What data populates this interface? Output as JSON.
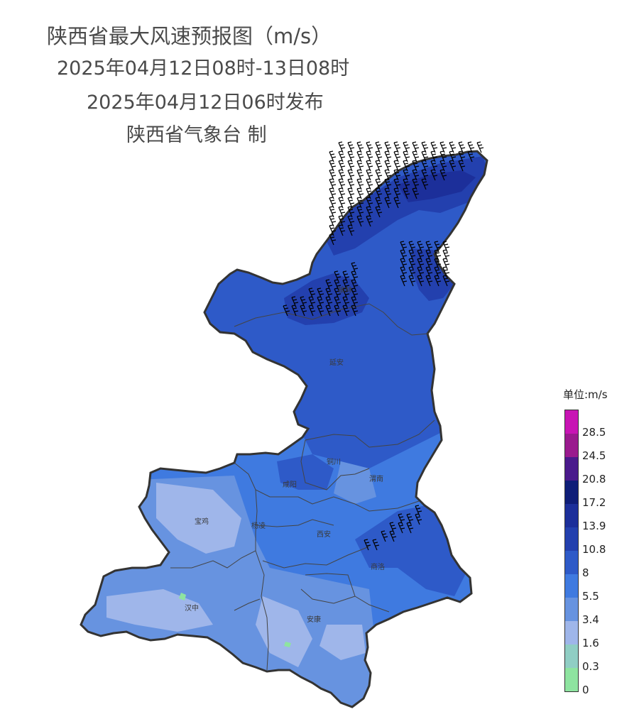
{
  "header": {
    "title": "陕西省最大风速预报图（m/s）",
    "period": "2025年04月12日08时-13日08时",
    "issued": "2025年04月12日06时发布",
    "issuer": "陕西省气象台 制"
  },
  "cities": [
    {
      "name": "榆林"
    },
    {
      "name": "延安"
    },
    {
      "name": "铜川"
    },
    {
      "name": "渭南"
    },
    {
      "name": "咸阳"
    },
    {
      "name": "宝鸡"
    },
    {
      "name": "杨凌"
    },
    {
      "name": "西安"
    },
    {
      "name": "商洛"
    },
    {
      "name": "汉中"
    },
    {
      "name": "安康"
    }
  ],
  "legend": {
    "title": "单位:m/s",
    "levels": [
      {
        "label": "28.5",
        "color": "#c814b4"
      },
      {
        "label": "24.5",
        "color": "#9a1a8e"
      },
      {
        "label": "20.8",
        "color": "#4a1a8c"
      },
      {
        "label": "17.2",
        "color": "#0f1e78"
      },
      {
        "label": "13.9",
        "color": "#1c2f9a"
      },
      {
        "label": "10.8",
        "color": "#2340ae"
      },
      {
        "label": "8",
        "color": "#2e5ac8"
      },
      {
        "label": "5.5",
        "color": "#3f7ae0"
      },
      {
        "label": "3.4",
        "color": "#6793e0"
      },
      {
        "label": "1.6",
        "color": "#9fb6ea"
      },
      {
        "label": "0.3",
        "color": "#90cec4"
      },
      {
        "label": "0",
        "color": "#8ee4a0"
      }
    ]
  }
}
